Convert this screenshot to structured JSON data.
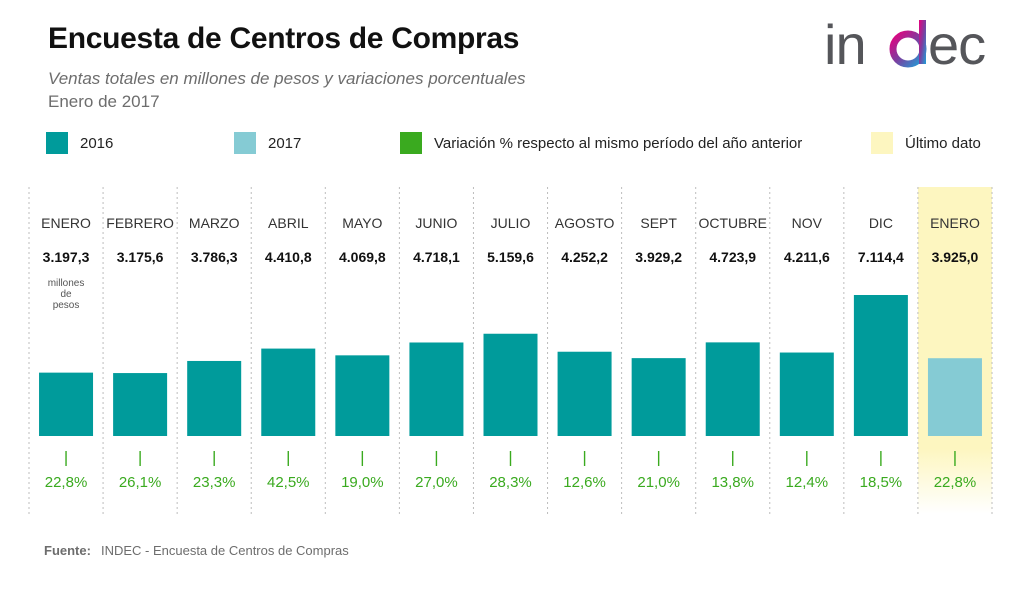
{
  "header": {
    "title": "Encuesta de Centros de Compras",
    "subtitle": "Ventas totales en millones de pesos y variaciones porcentuales",
    "period": "Enero de 2017"
  },
  "logo": {
    "text": "indec",
    "icon": "indec-logo"
  },
  "legend": [
    {
      "label": "2016",
      "color": "#009b9b"
    },
    {
      "label": "2017",
      "color": "#85cbd4"
    },
    {
      "label": "Variación % respecto al mismo período del año anterior",
      "color": "#3aaa1f"
    },
    {
      "label": "Último dato",
      "color": "#fdf6c0"
    }
  ],
  "chart_data": {
    "type": "bar",
    "categories": [
      "ENERO",
      "FEBRERO",
      "MARZO",
      "ABRIL",
      "MAYO",
      "JUNIO",
      "JULIO",
      "AGOSTO",
      "SEPT",
      "OCTUBRE",
      "NOV",
      "DIC",
      "ENERO"
    ],
    "value_labels": [
      "3.197,3",
      "3.175,6",
      "3.786,3",
      "4.410,8",
      "4.069,8",
      "4.718,1",
      "5.159,6",
      "4.252,2",
      "3.929,2",
      "4.723,9",
      "4.211,6",
      "7.114,4",
      "3.925,0"
    ],
    "values": [
      3197.3,
      3175.6,
      3786.3,
      4410.8,
      4069.8,
      4718.1,
      5159.6,
      4252.2,
      3929.2,
      4723.9,
      4211.6,
      7114.4,
      3925.0
    ],
    "years": [
      2016,
      2016,
      2016,
      2016,
      2016,
      2016,
      2016,
      2016,
      2016,
      2016,
      2016,
      2016,
      2017
    ],
    "variation_labels": [
      "22,8%",
      "26,1%",
      "23,3%",
      "42,5%",
      "19,0%",
      "27,0%",
      "28,3%",
      "12,6%",
      "21,0%",
      "13,8%",
      "12,4%",
      "18,5%",
      "22,8%"
    ],
    "variation": [
      22.8,
      26.1,
      23.3,
      42.5,
      19.0,
      27.0,
      28.3,
      12.6,
      21.0,
      13.8,
      12.4,
      18.5,
      22.8
    ],
    "unit_note": [
      "millones",
      "de",
      "pesos"
    ],
    "highlight_index": 12,
    "ylim": [
      0,
      7114.4
    ],
    "colors": {
      "bar_2016": "#009b9b",
      "bar_2017": "#85cbd4",
      "variation": "#3aaa1f",
      "highlight": "#fdf6c0",
      "divider": "#bdbdbd"
    }
  },
  "source": {
    "label": "Fuente:",
    "text": "INDEC - Encuesta de Centros de Compras"
  }
}
